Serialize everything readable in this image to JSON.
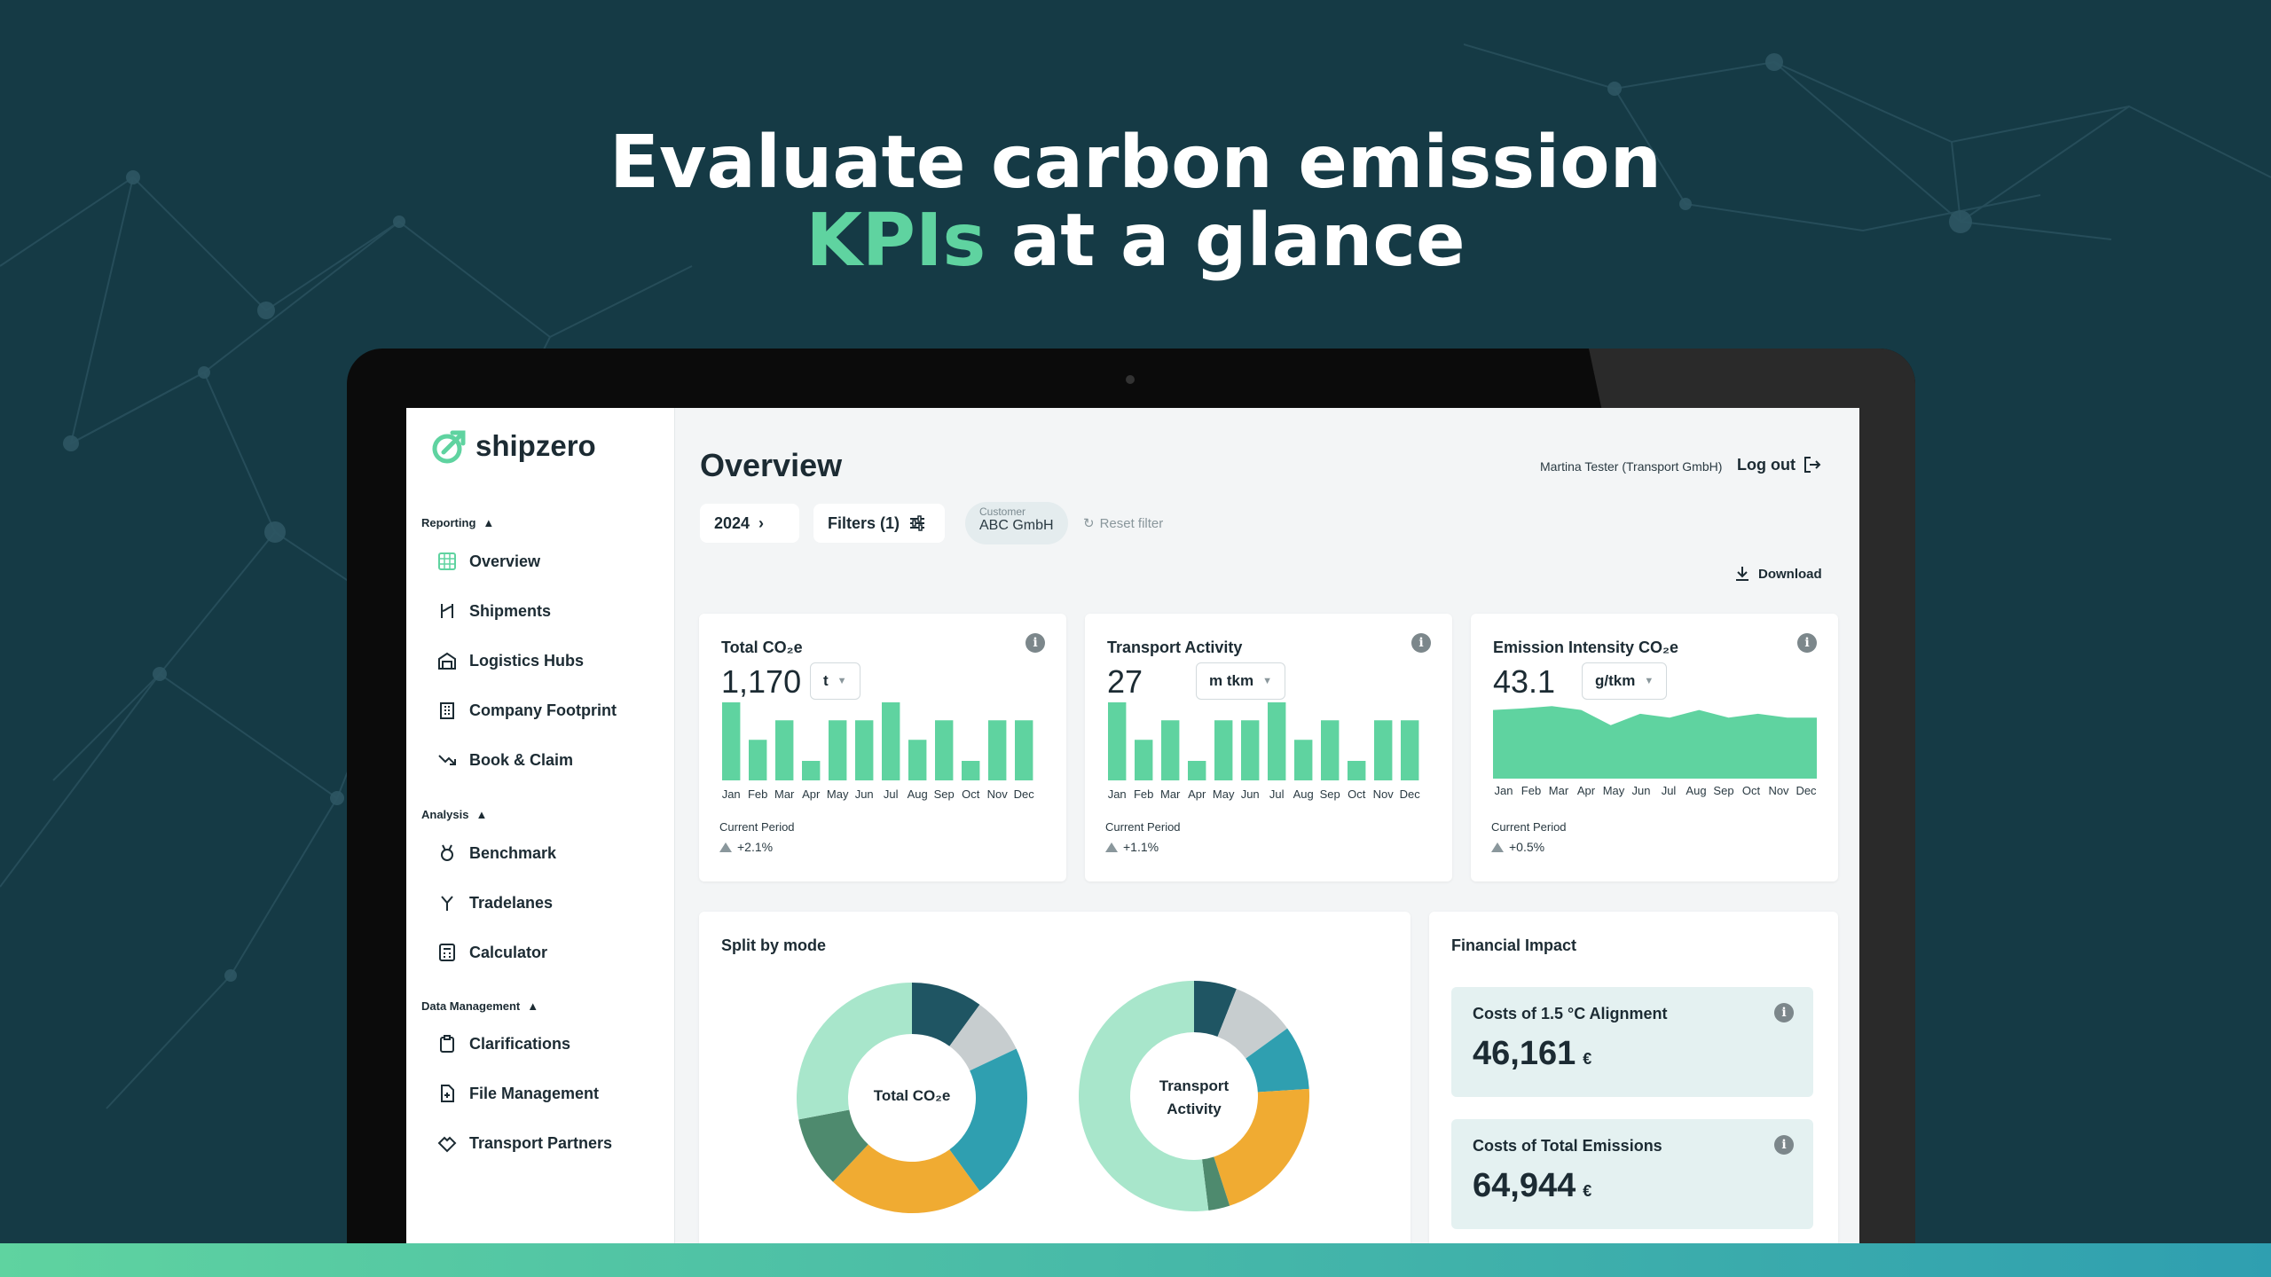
{
  "headline": {
    "line1": "Evaluate carbon emission",
    "accent": "KPIs",
    "line2_rest": " at a glance"
  },
  "colors": {
    "background": "#153a45",
    "accent": "#5fd3a0",
    "bar": "#5fd3a0",
    "pie_dark": "#1f5563",
    "pie_grey": "#c7cdcf",
    "pie_blue": "#2f9fb0",
    "pie_orange": "#f0ab32",
    "pie_darkgreen": "#4e8a6e",
    "pie_mint": "#a8e6cb"
  },
  "app": {
    "logo": "shipzero",
    "sidebar": {
      "sections": [
        {
          "title": "Reporting",
          "items": [
            "Overview",
            "Shipments",
            "Logistics Hubs",
            "Company Footprint",
            "Book & Claim"
          ]
        },
        {
          "title": "Analysis",
          "items": [
            "Benchmark",
            "Tradelanes",
            "Calculator"
          ]
        },
        {
          "title": "Data Management",
          "items": [
            "Clarifications",
            "File Management",
            "Transport Partners"
          ]
        }
      ]
    },
    "header": {
      "title": "Overview",
      "user": "Martina Tester (Transport GmbH)",
      "logout": "Log out",
      "year": "2024",
      "filters": "Filters (1)",
      "customer_label": "Customer",
      "customer_value": "ABC GmbH",
      "reset": "Reset filter",
      "download": "Download"
    },
    "months": [
      "Jan",
      "Feb",
      "Mar",
      "Apr",
      "May",
      "Jun",
      "Jul",
      "Aug",
      "Sep",
      "Oct",
      "Nov",
      "Dec"
    ],
    "kpis": [
      {
        "title": "Total CO₂e",
        "value": "1,170",
        "unit": "t",
        "period_label": "Current Period",
        "delta": "+2.1%"
      },
      {
        "title": "Transport Activity",
        "value": "27",
        "unit": "m tkm",
        "period_label": "Current Period",
        "delta": "+1.1%"
      },
      {
        "title": "Emission Intensity CO₂e",
        "value": "43.1",
        "unit": "g/tkm",
        "period_label": "Current Period",
        "delta": "+0.5%"
      }
    ],
    "split": {
      "title": "Split by mode",
      "donut1_label_line1": "Total CO₂e",
      "donut2_label_line1": "Transport",
      "donut2_label_line2": "Activity"
    },
    "financial": {
      "title": "Financial Impact",
      "items": [
        {
          "title": "Costs of 1.5 °C Alignment",
          "value": "46,161",
          "currency": "€"
        },
        {
          "title": "Costs of Total Emissions",
          "value": "64,944",
          "currency": "€"
        }
      ]
    }
  },
  "chart_data": [
    {
      "type": "bar",
      "categories": [
        "Jan",
        "Feb",
        "Mar",
        "Apr",
        "May",
        "Jun",
        "Jul",
        "Aug",
        "Sep",
        "Oct",
        "Nov",
        "Dec"
      ],
      "values": [
        100,
        52,
        77,
        25,
        77,
        77,
        100,
        52,
        77,
        25,
        77,
        77
      ]
    },
    {
      "type": "bar",
      "categories": [
        "Jan",
        "Feb",
        "Mar",
        "Apr",
        "May",
        "Jun",
        "Jul",
        "Aug",
        "Sep",
        "Oct",
        "Nov",
        "Dec"
      ],
      "values": [
        100,
        52,
        77,
        25,
        77,
        77,
        100,
        52,
        77,
        25,
        77,
        77
      ]
    },
    {
      "type": "area",
      "categories": [
        "Jan",
        "Feb",
        "Mar",
        "Apr",
        "May",
        "Jun",
        "Jul",
        "Aug",
        "Sep",
        "Oct",
        "Nov",
        "Dec"
      ],
      "values": [
        90,
        92,
        95,
        90,
        70,
        85,
        80,
        90,
        80,
        85,
        80,
        80
      ]
    },
    {
      "type": "pie",
      "labels": [
        "Dark teal",
        "Grey",
        "Blue",
        "Orange",
        "Dark green",
        "Mint"
      ],
      "values": [
        10,
        8,
        22,
        22,
        10,
        28
      ]
    },
    {
      "type": "pie",
      "labels": [
        "Dark teal",
        "Grey",
        "Blue",
        "Orange",
        "Dark green",
        "Mint"
      ],
      "values": [
        6,
        9,
        9,
        21,
        3,
        52
      ]
    }
  ]
}
